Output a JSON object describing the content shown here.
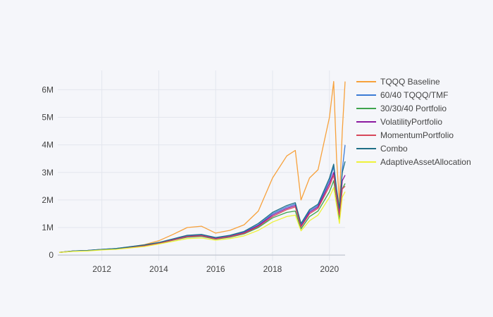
{
  "chart_data": {
    "type": "line",
    "title": "",
    "xlabel": "",
    "ylabel": "",
    "xlim": [
      2010.45,
      2020.55
    ],
    "ylim": [
      -200000,
      6700000
    ],
    "grid": true,
    "legend_position": "right",
    "x_ticks": [
      {
        "value": 2012,
        "label": "2012"
      },
      {
        "value": 2014,
        "label": "2014"
      },
      {
        "value": 2016,
        "label": "2016"
      },
      {
        "value": 2018,
        "label": "2018"
      },
      {
        "value": 2020,
        "label": "2020"
      }
    ],
    "y_ticks": [
      {
        "value": 0,
        "label": "0"
      },
      {
        "value": 1000000,
        "label": "1M"
      },
      {
        "value": 2000000,
        "label": "2M"
      },
      {
        "value": 3000000,
        "label": "3M"
      },
      {
        "value": 4000000,
        "label": "4M"
      },
      {
        "value": 5000000,
        "label": "5M"
      },
      {
        "value": 6000000,
        "label": "6M"
      }
    ],
    "x": [
      2010.5,
      2011.0,
      2011.5,
      2012.0,
      2012.5,
      2013.0,
      2013.5,
      2014.0,
      2014.5,
      2015.0,
      2015.5,
      2016.0,
      2016.5,
      2017.0,
      2017.5,
      2018.0,
      2018.5,
      2018.8,
      2019.0,
      2019.3,
      2019.6,
      2020.0,
      2020.15,
      2020.25,
      2020.35,
      2020.45,
      2020.55
    ],
    "series": [
      {
        "name": "TQQQ Baseline",
        "color": "#f7a13b",
        "values": [
          100000,
          150000,
          160000,
          200000,
          220000,
          300000,
          380000,
          520000,
          750000,
          1000000,
          1050000,
          800000,
          900000,
          1100000,
          1600000,
          2800000,
          3600000,
          3800000,
          2000000,
          2800000,
          3100000,
          5000000,
          6300000,
          3500000,
          1900000,
          4500000,
          6300000
        ]
      },
      {
        "name": "60/40 TQQQ/TMF",
        "color": "#3b7bd5",
        "values": [
          100000,
          150000,
          170000,
          210000,
          240000,
          300000,
          360000,
          450000,
          570000,
          700000,
          730000,
          620000,
          700000,
          830000,
          1100000,
          1500000,
          1750000,
          1850000,
          1100000,
          1600000,
          1800000,
          2700000,
          3200000,
          2300000,
          1600000,
          3100000,
          4000000
        ]
      },
      {
        "name": "30/30/40 Portfolio",
        "color": "#3fa34d",
        "values": [
          100000,
          140000,
          160000,
          200000,
          220000,
          280000,
          330000,
          420000,
          540000,
          650000,
          680000,
          580000,
          650000,
          770000,
          1000000,
          1350000,
          1550000,
          1600000,
          950000,
          1400000,
          1600000,
          2300000,
          2700000,
          2000000,
          1300000,
          2400000,
          2600000
        ]
      },
      {
        "name": "VolatilityPortfolio",
        "color": "#8b1aa0",
        "values": [
          100000,
          148000,
          168000,
          205000,
          235000,
          295000,
          350000,
          440000,
          560000,
          680000,
          710000,
          600000,
          680000,
          810000,
          1070000,
          1450000,
          1700000,
          1800000,
          1050000,
          1550000,
          1750000,
          2600000,
          3000000,
          2200000,
          1500000,
          2700000,
          2900000
        ]
      },
      {
        "name": "MomentumPortfolio",
        "color": "#d7475a",
        "values": [
          100000,
          145000,
          165000,
          200000,
          230000,
          285000,
          340000,
          430000,
          550000,
          670000,
          700000,
          590000,
          670000,
          790000,
          1040000,
          1400000,
          1650000,
          1750000,
          1020000,
          1500000,
          1700000,
          2500000,
          2900000,
          2100000,
          1450000,
          2400000,
          2500000
        ]
      },
      {
        "name": "Combo",
        "color": "#1f6f86",
        "values": [
          100000,
          150000,
          170000,
          210000,
          240000,
          305000,
          370000,
          460000,
          590000,
          720000,
          750000,
          640000,
          720000,
          860000,
          1150000,
          1550000,
          1800000,
          1900000,
          1150000,
          1650000,
          1850000,
          2800000,
          3300000,
          2400000,
          1700000,
          3000000,
          3400000
        ]
      },
      {
        "name": "AdaptiveAssetAllocation",
        "color": "#eef23a",
        "values": [
          100000,
          135000,
          150000,
          185000,
          210000,
          260000,
          310000,
          400000,
          500000,
          600000,
          620000,
          540000,
          600000,
          700000,
          900000,
          1200000,
          1400000,
          1450000,
          880000,
          1250000,
          1450000,
          2100000,
          2450000,
          1800000,
          1150000,
          2100000,
          2300000
        ]
      }
    ]
  }
}
